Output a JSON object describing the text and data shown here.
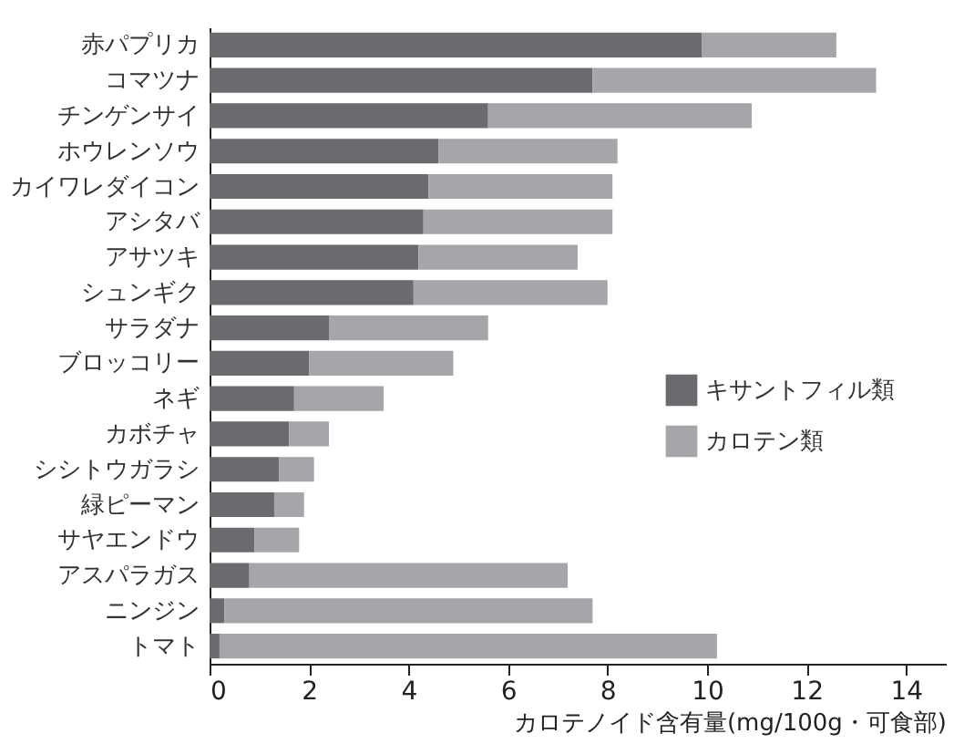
{
  "chart_data": {
    "type": "bar",
    "orientation": "horizontal",
    "stacked": true,
    "xlabel": "カロテノイド含有量(mg/100g・可食部)",
    "categories": [
      "赤パプリカ",
      "コマツナ",
      "チンゲンサイ",
      "ホウレンソウ",
      "カイワレダイコン",
      "アシタバ",
      "アサツキ",
      "シュンギク",
      "サラダナ",
      "ブロッコリー",
      "ネギ",
      "カボチャ",
      "シシトウガラシ",
      "緑ピーマン",
      "サヤエンドウ",
      "アスパラガス",
      "ニンジン",
      "トマト"
    ],
    "series": [
      {
        "name": "キサントフィル類",
        "color": "#6b6b6f",
        "values": [
          9.9,
          7.7,
          5.6,
          4.6,
          4.4,
          4.3,
          4.2,
          4.1,
          2.4,
          2.0,
          1.7,
          1.6,
          1.4,
          1.3,
          0.9,
          0.8,
          0.3,
          0.2
        ]
      },
      {
        "name": "カロテン類",
        "color": "#a6a6aa",
        "values": [
          2.7,
          5.7,
          5.3,
          3.6,
          3.7,
          3.8,
          3.2,
          3.9,
          3.2,
          2.9,
          1.8,
          0.8,
          0.7,
          0.6,
          0.9,
          6.4,
          7.4,
          10.0
        ]
      }
    ],
    "xlim": [
      0,
      14.8
    ],
    "xticks": [
      0,
      2,
      4,
      6,
      8,
      10,
      12,
      14
    ],
    "grid": false,
    "legend": "right"
  }
}
